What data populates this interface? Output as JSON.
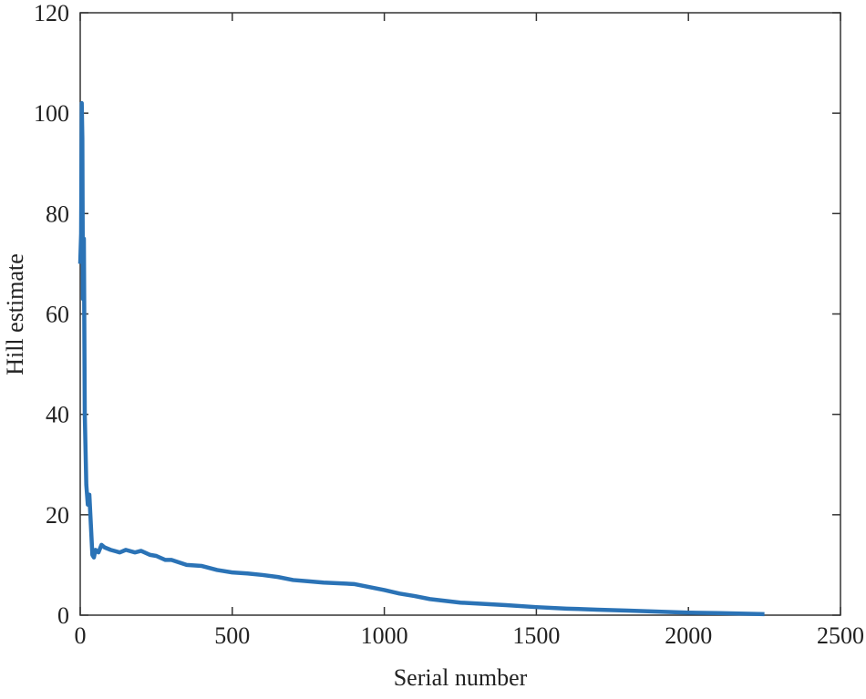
{
  "chart_data": {
    "type": "line",
    "x_label": "Serial number",
    "y_label": "Hill estimate",
    "x": [
      0,
      3,
      5,
      7,
      9,
      12,
      15,
      20,
      25,
      30,
      35,
      40,
      45,
      50,
      60,
      70,
      80,
      100,
      130,
      150,
      180,
      200,
      230,
      250,
      280,
      300,
      350,
      400,
      450,
      500,
      550,
      600,
      650,
      700,
      800,
      900,
      1000,
      1050,
      1100,
      1150,
      1250,
      1400,
      1500,
      1600,
      1700,
      1800,
      1900,
      2000,
      2100,
      2250
    ],
    "series": [
      {
        "name": "Hill estimate",
        "color": "#2b73b6",
        "values": [
          70,
          76,
          102,
          95,
          63,
          75,
          40,
          26,
          22,
          24,
          18,
          12,
          11.5,
          13,
          12.5,
          14,
          13.5,
          13,
          12.5,
          13,
          12.5,
          12.8,
          12,
          11.8,
          11,
          11,
          10,
          9.8,
          9,
          8.5,
          8.3,
          8,
          7.6,
          7,
          6.5,
          6.2,
          5,
          4.3,
          3.8,
          3.2,
          2.5,
          2,
          1.6,
          1.3,
          1.1,
          0.9,
          0.7,
          0.5,
          0.4,
          0.2
        ]
      }
    ],
    "xlim": [
      0,
      2500
    ],
    "xticks": [
      0,
      500,
      1000,
      1500,
      2000,
      2500
    ],
    "ylim": [
      0,
      120
    ],
    "yticks": [
      0,
      20,
      40,
      60,
      80,
      100,
      120
    ]
  }
}
